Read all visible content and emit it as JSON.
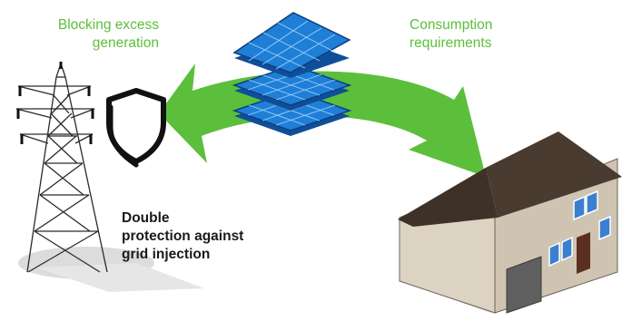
{
  "labels": {
    "left_title_line1": "Blocking excess",
    "left_title_line2": "generation",
    "right_title_line1": "Consumption",
    "right_title_line2": "requirements",
    "protection_line1": "Double",
    "protection_line2": "protection against",
    "protection_line3": "grid injection"
  },
  "icons": [
    "transmission-tower-icon",
    "shield-icon",
    "solar-panel-stack-icon",
    "house-icon"
  ],
  "colors": {
    "accent_green": "#5cbf3a",
    "arrow_green": "#5bbf3b",
    "panel_blue": "#1f7fd6",
    "panel_dark": "#0f4f9a",
    "house_roof": "#4a3b30",
    "house_wall": "#ddd3c3",
    "text_dark": "#1a1a1a"
  }
}
